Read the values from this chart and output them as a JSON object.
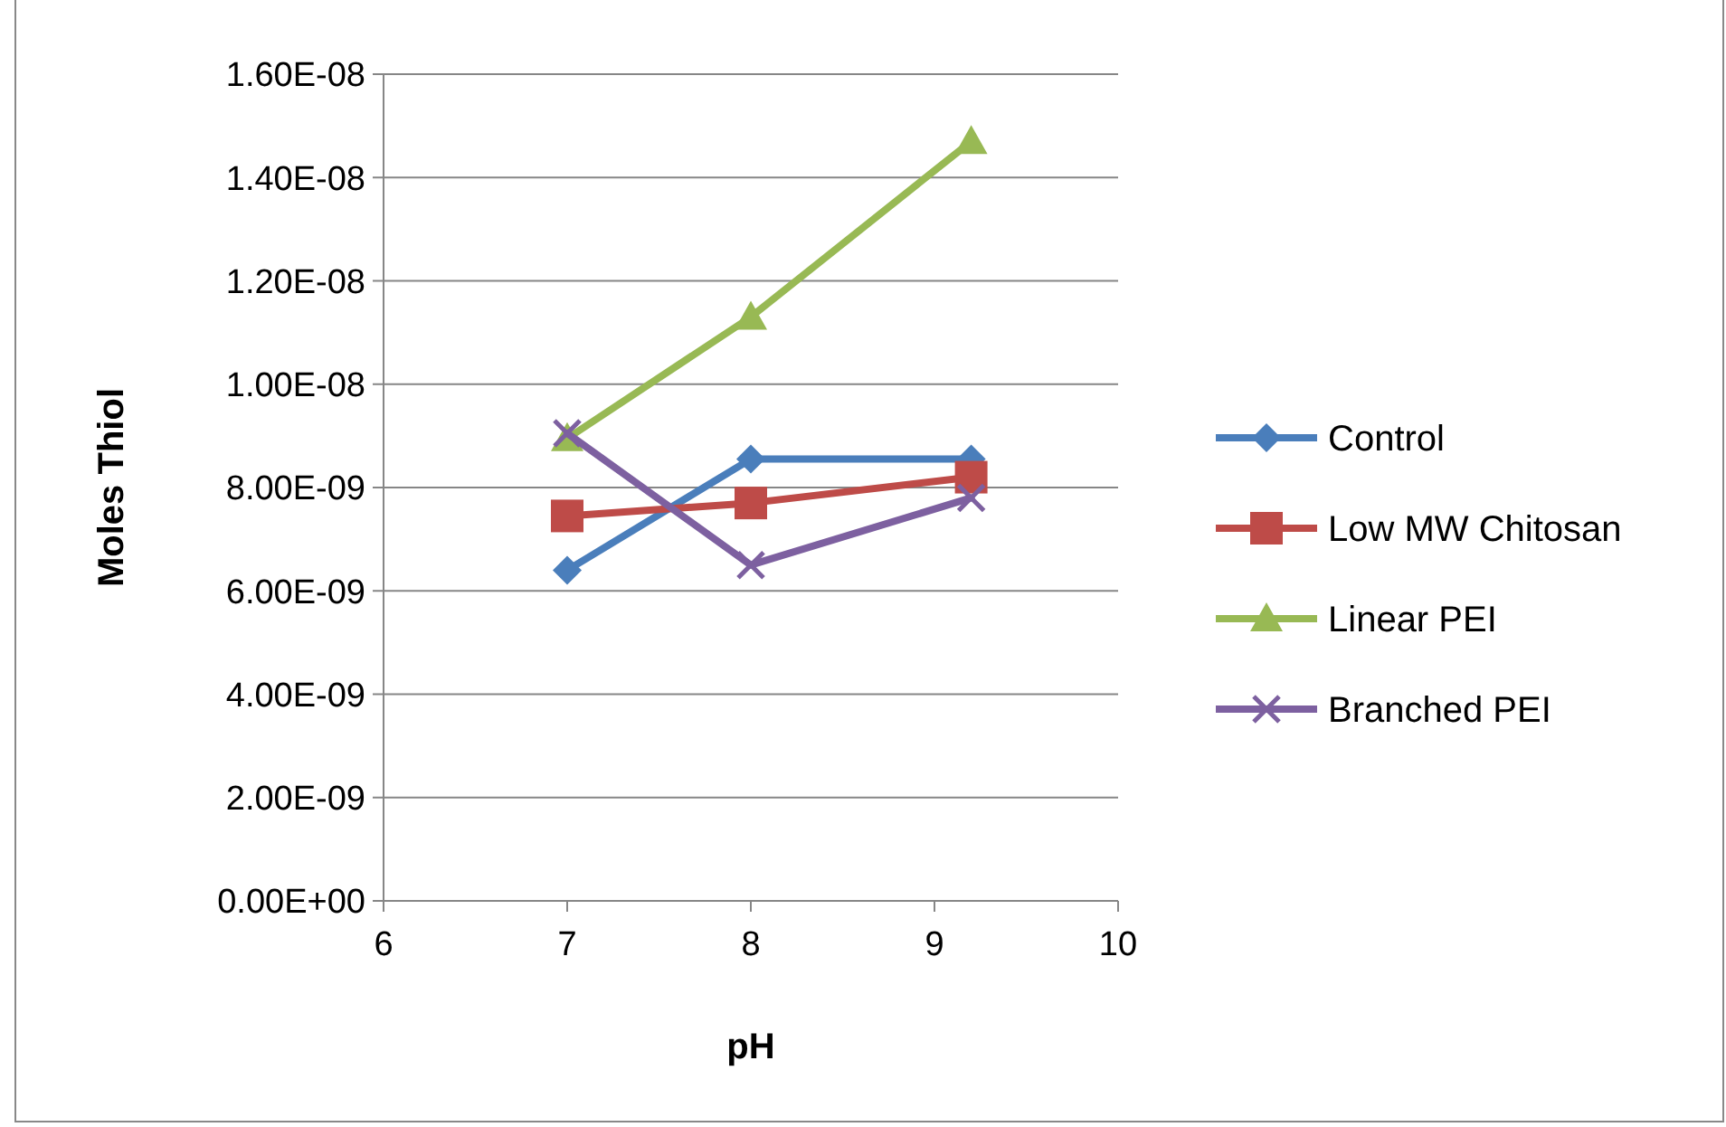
{
  "chart_data": {
    "type": "line",
    "xlabel": "pH",
    "ylabel": "Moles Thiol",
    "xlim": [
      6,
      10
    ],
    "xticks": [
      6,
      7,
      8,
      9,
      10
    ],
    "ylim": [
      0,
      1.6e-08
    ],
    "yticks": [
      {
        "value": 0,
        "label": "0.00E+00"
      },
      {
        "value": 2e-09,
        "label": "2.00E-09"
      },
      {
        "value": 4e-09,
        "label": "4.00E-09"
      },
      {
        "value": 6e-09,
        "label": "6.00E-09"
      },
      {
        "value": 8e-09,
        "label": "8.00E-09"
      },
      {
        "value": 1e-08,
        "label": "1.00E-08"
      },
      {
        "value": 1.2e-08,
        "label": "1.20E-08"
      },
      {
        "value": 1.4e-08,
        "label": "1.40E-08"
      },
      {
        "value": 1.6e-08,
        "label": "1.60E-08"
      }
    ],
    "x": [
      7,
      8,
      9.2
    ],
    "grid": "y",
    "legend": "right",
    "line_style": "solid",
    "series": [
      {
        "name": "Control",
        "color": "#4a7ebb",
        "marker": "diamond",
        "values": [
          6.4e-09,
          8.55e-09,
          8.55e-09
        ]
      },
      {
        "name": "Low MW Chitosan",
        "color": "#be4b48",
        "marker": "square",
        "values": [
          7.45e-09,
          7.7e-09,
          8.2e-09
        ]
      },
      {
        "name": "Linear PEI",
        "color": "#98b954",
        "marker": "triangle",
        "values": [
          8.95e-09,
          1.13e-08,
          1.47e-08
        ]
      },
      {
        "name": "Branched PEI",
        "color": "#7d60a0",
        "marker": "cross",
        "values": [
          9.05e-09,
          6.5e-09,
          7.8e-09
        ]
      }
    ]
  }
}
